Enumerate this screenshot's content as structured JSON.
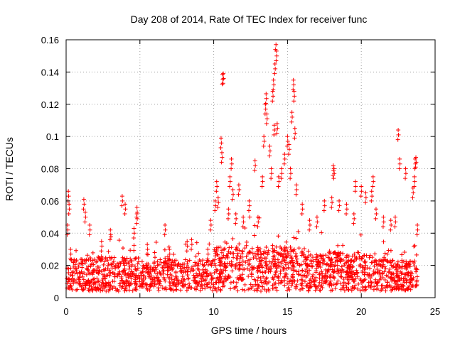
{
  "chart_data": {
    "type": "scatter",
    "title": "Day 208 of 2014, Rate Of TEC Index for receiver func",
    "xlabel": "GPS time / hours",
    "ylabel": "ROTI / TECUs",
    "xlim": [
      0,
      25
    ],
    "ylim": [
      0,
      0.16
    ],
    "xticks": [
      0,
      5,
      10,
      15,
      20,
      25
    ],
    "xtick_labels": [
      "0",
      "5",
      "10",
      "15",
      "20",
      "25"
    ],
    "yticks": [
      0,
      0.02,
      0.04,
      0.06,
      0.08,
      0.1,
      0.12,
      0.14,
      0.16
    ],
    "ytick_labels": [
      "0",
      "0.02",
      "0.04",
      "0.06",
      "0.08",
      "0.1",
      "0.12",
      "0.14",
      "0.16"
    ],
    "grid": true,
    "marker": "+",
    "color": "#ff0000",
    "series": [
      {
        "name": "ROTI",
        "description": "dense band of points between ~0.005 and ~0.035 TECU over 0-23.8 h, with scattered spikes",
        "points": [
          [
            0.05,
            0.012
          ],
          [
            0.1,
            0.045
          ],
          [
            0.15,
            0.066
          ],
          [
            0.2,
            0.058
          ],
          [
            0.3,
            0.03
          ],
          [
            0.5,
            0.022
          ],
          [
            1.2,
            0.061
          ],
          [
            1.3,
            0.053
          ],
          [
            1.6,
            0.045
          ],
          [
            2.4,
            0.035
          ],
          [
            3.0,
            0.042
          ],
          [
            3.8,
            0.063
          ],
          [
            4.0,
            0.058
          ],
          [
            4.6,
            0.043
          ],
          [
            4.8,
            0.052
          ],
          [
            4.8,
            0.056
          ],
          [
            5.5,
            0.033
          ],
          [
            6.0,
            0.028
          ],
          [
            6.7,
            0.045
          ],
          [
            7.0,
            0.03
          ],
          [
            8.2,
            0.035
          ],
          [
            8.5,
            0.036
          ],
          [
            9.6,
            0.03
          ],
          [
            9.8,
            0.048
          ],
          [
            10.1,
            0.06
          ],
          [
            10.2,
            0.072
          ],
          [
            10.3,
            0.062
          ],
          [
            10.5,
            0.099
          ],
          [
            10.55,
            0.09
          ],
          [
            10.6,
            0.1385
          ],
          [
            10.65,
            0.139
          ],
          [
            11.0,
            0.055
          ],
          [
            11.1,
            0.075
          ],
          [
            11.2,
            0.086
          ],
          [
            11.3,
            0.067
          ],
          [
            11.5,
            0.052
          ],
          [
            11.7,
            0.07
          ],
          [
            12.0,
            0.05
          ],
          [
            12.4,
            0.06
          ],
          [
            12.8,
            0.085
          ],
          [
            13.0,
            0.05
          ],
          [
            13.3,
            0.075
          ],
          [
            13.4,
            0.1
          ],
          [
            13.5,
            0.12
          ],
          [
            13.55,
            0.1265
          ],
          [
            13.6,
            0.114
          ],
          [
            13.8,
            0.094
          ],
          [
            13.9,
            0.08
          ],
          [
            14.0,
            0.128
          ],
          [
            14.05,
            0.135
          ],
          [
            14.1,
            0.107
          ],
          [
            14.15,
            0.145
          ],
          [
            14.2,
            0.16
          ],
          [
            14.25,
            0.153
          ],
          [
            14.3,
            0.108
          ],
          [
            14.4,
            0.075
          ],
          [
            14.6,
            0.08
          ],
          [
            14.8,
            0.089
          ],
          [
            15.0,
            0.1
          ],
          [
            15.1,
            0.095
          ],
          [
            15.2,
            0.08
          ],
          [
            15.3,
            0.115
          ],
          [
            15.4,
            0.135
          ],
          [
            15.45,
            0.128
          ],
          [
            15.5,
            0.105
          ],
          [
            15.6,
            0.07
          ],
          [
            16.0,
            0.058
          ],
          [
            16.5,
            0.048
          ],
          [
            17.0,
            0.05
          ],
          [
            17.5,
            0.06
          ],
          [
            18.0,
            0.062
          ],
          [
            18.1,
            0.082
          ],
          [
            18.15,
            0.08
          ],
          [
            18.5,
            0.06
          ],
          [
            19.0,
            0.058
          ],
          [
            19.5,
            0.052
          ],
          [
            19.6,
            0.072
          ],
          [
            20.0,
            0.069
          ],
          [
            20.3,
            0.065
          ],
          [
            20.7,
            0.066
          ],
          [
            20.8,
            0.075
          ],
          [
            21.0,
            0.055
          ],
          [
            21.5,
            0.05
          ],
          [
            22.0,
            0.048
          ],
          [
            22.3,
            0.05
          ],
          [
            22.5,
            0.104
          ],
          [
            22.6,
            0.086
          ],
          [
            23.0,
            0.08
          ],
          [
            23.5,
            0.068
          ],
          [
            23.6,
            0.075
          ],
          [
            23.65,
            0.086
          ],
          [
            23.7,
            0.087
          ],
          [
            23.8,
            0.045
          ]
        ]
      }
    ]
  }
}
